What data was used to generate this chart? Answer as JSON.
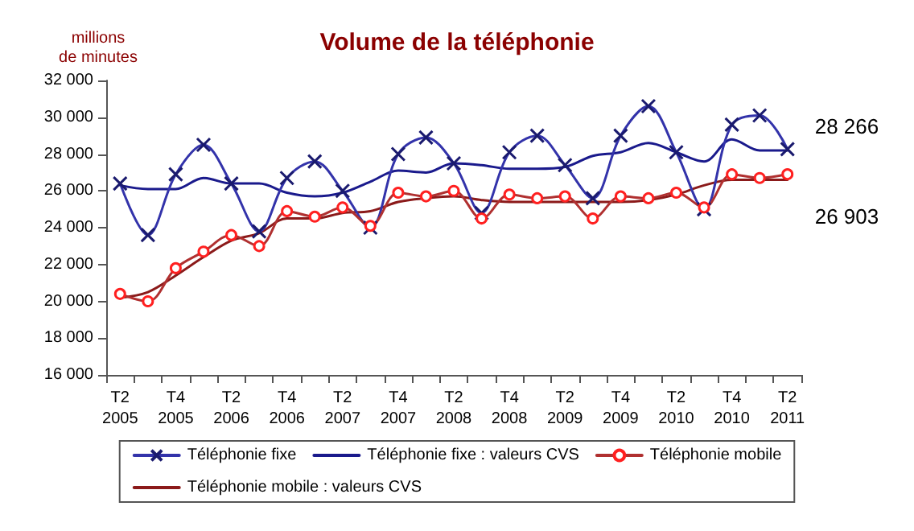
{
  "chart_data": {
    "type": "line",
    "title": "Volume de la téléphonie",
    "ylabel": "millions\nde minutes",
    "categories": [
      "T2\n2005",
      null,
      "T4\n2005",
      null,
      "T2\n2006",
      null,
      "T4\n2006",
      null,
      "T2\n2007",
      null,
      "T4\n2007",
      null,
      "T2\n2008",
      null,
      "T4\n2008",
      null,
      "T2\n2009",
      null,
      "T4\n2009",
      null,
      "T2\n2010",
      null,
      "T4\n2010",
      null,
      "T2\n2011"
    ],
    "series": [
      {
        "name": "Téléphonie fixe",
        "color": "#3333aa",
        "marker": "cross",
        "values": [
          26400,
          23600,
          26900,
          28500,
          26400,
          23800,
          26700,
          27600,
          26000,
          24000,
          28000,
          28900,
          27500,
          24800,
          28100,
          29000,
          27400,
          25600,
          29000,
          30600,
          28100,
          25000,
          29600,
          30100,
          28266
        ]
      },
      {
        "name": "Téléphonie fixe : valeurs CVS",
        "color": "#1a1a8c",
        "marker": "none",
        "values": [
          26300,
          26100,
          26100,
          26700,
          26400,
          26400,
          25900,
          25700,
          25900,
          26500,
          27100,
          27000,
          27500,
          27400,
          27200,
          27200,
          27300,
          27900,
          28100,
          28600,
          28100,
          27600,
          28800,
          28200,
          28200
        ]
      },
      {
        "name": "Téléphonie mobile",
        "color": "#b03030",
        "marker": "circle",
        "values": [
          20400,
          20000,
          21800,
          22700,
          23600,
          23000,
          24900,
          24600,
          25100,
          24100,
          25900,
          25700,
          26000,
          24500,
          25800,
          25600,
          25700,
          24500,
          25700,
          25600,
          25900,
          25100,
          26900,
          26700,
          26903
        ]
      },
      {
        "name": "Téléphonie mobile : valeurs CVS",
        "color": "#8b1a1a",
        "marker": "none",
        "values": [
          20200,
          20500,
          21400,
          22400,
          23300,
          23700,
          24500,
          24500,
          24800,
          24900,
          25400,
          25600,
          25700,
          25500,
          25400,
          25400,
          25400,
          25400,
          25400,
          25500,
          25800,
          26300,
          26600,
          26600,
          26600
        ]
      }
    ],
    "ylim": [
      16000,
      32000
    ],
    "yticks": [
      {
        "value": 16000,
        "label": "16 000"
      },
      {
        "value": 18000,
        "label": "18 000"
      },
      {
        "value": 20000,
        "label": "20 000"
      },
      {
        "value": 22000,
        "label": "22 000"
      },
      {
        "value": 24000,
        "label": "24 000"
      },
      {
        "value": 26000,
        "label": "26 000"
      },
      {
        "value": 28000,
        "label": "28 000"
      },
      {
        "value": 30000,
        "label": "30 000"
      },
      {
        "value": 32000,
        "label": "32 000"
      }
    ],
    "annotations": [
      {
        "text": "28 266",
        "x": "T2\n2011",
        "y": 28266
      },
      {
        "text": "26 903",
        "x": "T2\n2011",
        "y": 26903
      }
    ],
    "grid": false,
    "legend": "bottom",
    "line_style": "solid"
  }
}
